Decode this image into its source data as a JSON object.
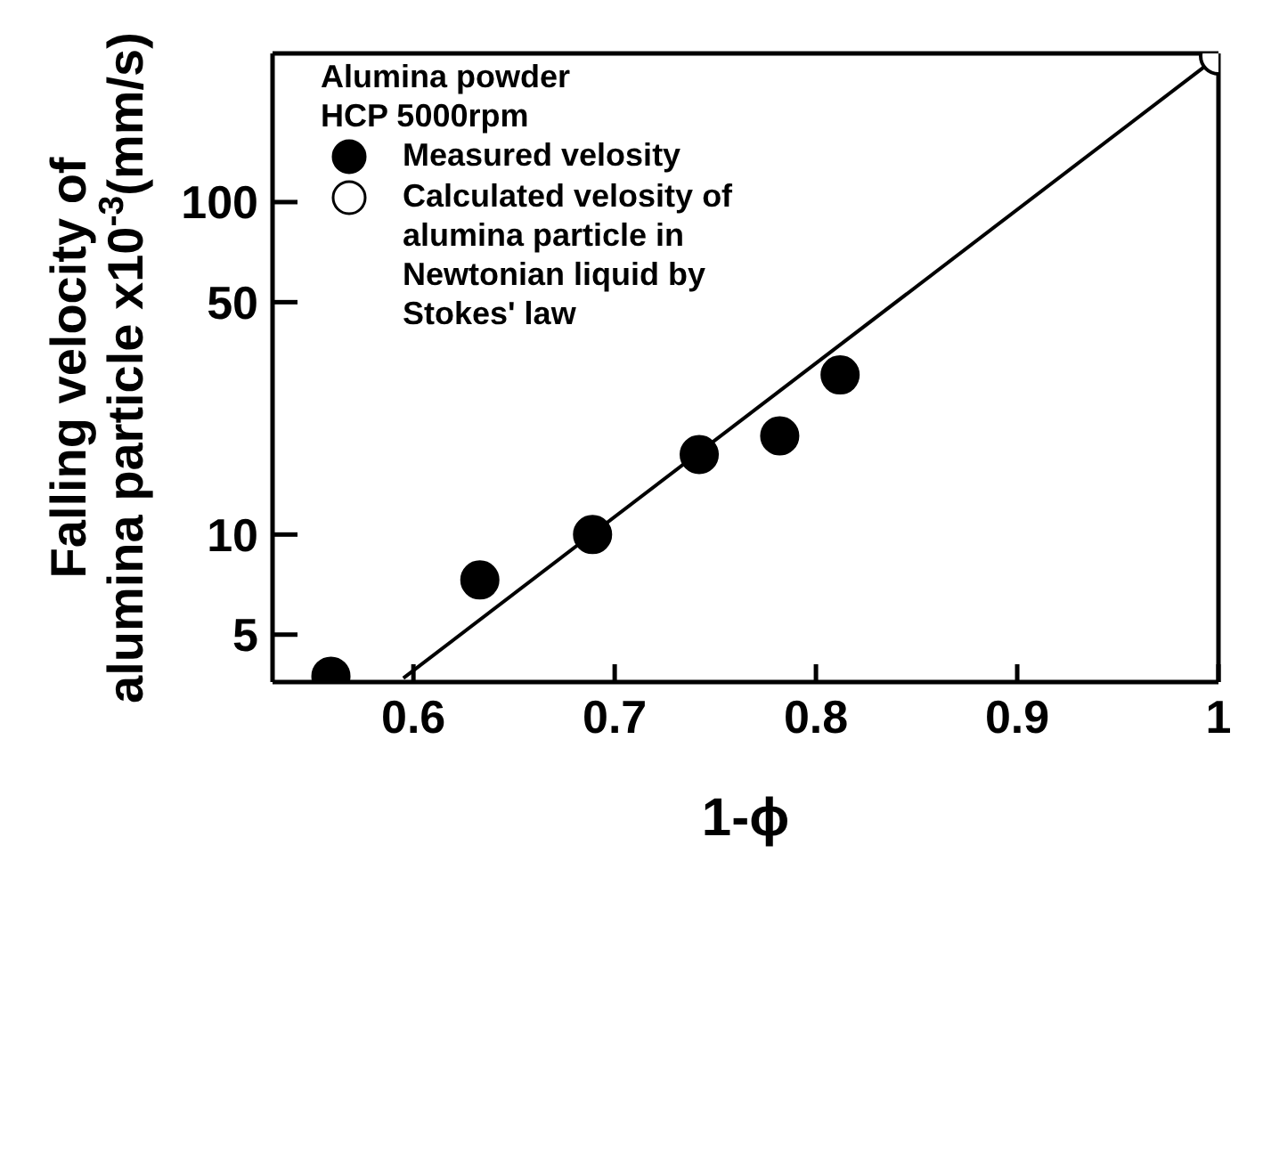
{
  "chart_data": {
    "type": "scatter",
    "xlabel": "1-ϕ",
    "ylabel": "Falling velocity of\nalumina particle x10$^{-3}$(mm/s)",
    "annotations": [
      "Alumina powder",
      "HCP 5000rpm"
    ],
    "xlim": [
      0.53,
      1.0
    ],
    "xticks": [
      0.6,
      0.7,
      0.8,
      0.9,
      {
        "value": 1.0,
        "label": "1"
      }
    ],
    "ylim": [
      3.6,
      280
    ],
    "yticks": [
      5,
      10,
      50,
      100
    ],
    "log": "y",
    "legend": "top left",
    "marker": "circle",
    "series": [
      {
        "name": "Measured velosity",
        "color": "#000000",
        "x": [
          0.559,
          0.633,
          0.689,
          0.742,
          0.782,
          0.812
        ],
        "values": [
          3.75,
          7.3,
          10,
          17.4,
          19.8,
          30.2
        ]
      },
      {
        "name": "Calculated velosity of alumina particle in Newtonian liquid by Stokes' law",
        "color": "#ffffff",
        "x": [
          1.0
        ],
        "values": [
          275
        ]
      },
      {
        "type": "line",
        "marker": "none",
        "color": "#000000",
        "line_style": "solid",
        "x": [
          0.595,
          1.0
        ],
        "values": [
          3.7,
          275
        ]
      }
    ]
  }
}
